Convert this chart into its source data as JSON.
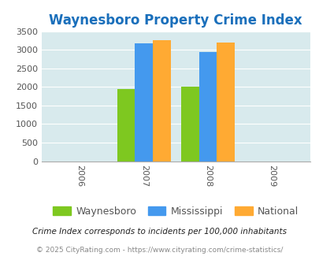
{
  "title": "Waynesboro Property Crime Index",
  "title_color": "#1a6fbb",
  "years": [
    2006,
    2007,
    2008,
    2009
  ],
  "bar_years": [
    2007,
    2008
  ],
  "waynesboro": [
    1950,
    2000
  ],
  "mississippi": [
    3170,
    2950
  ],
  "national": [
    3250,
    3200
  ],
  "bar_colors": {
    "waynesboro": "#7ec820",
    "mississippi": "#4499ee",
    "national": "#ffaa33"
  },
  "ylim": [
    0,
    3500
  ],
  "yticks": [
    0,
    500,
    1000,
    1500,
    2000,
    2500,
    3000,
    3500
  ],
  "background_color": "#d8eaed",
  "legend_labels": [
    "Waynesboro",
    "Mississippi",
    "National"
  ],
  "footnote1": "Crime Index corresponds to incidents per 100,000 inhabitants",
  "footnote2": "© 2025 CityRating.com - https://www.cityrating.com/crime-statistics/",
  "bar_width": 0.28,
  "xlim": [
    2005.4,
    2009.6
  ],
  "title_fontsize": 12,
  "tick_fontsize": 8,
  "legend_fontsize": 9,
  "footnote1_fontsize": 7.5,
  "footnote2_fontsize": 6.5
}
